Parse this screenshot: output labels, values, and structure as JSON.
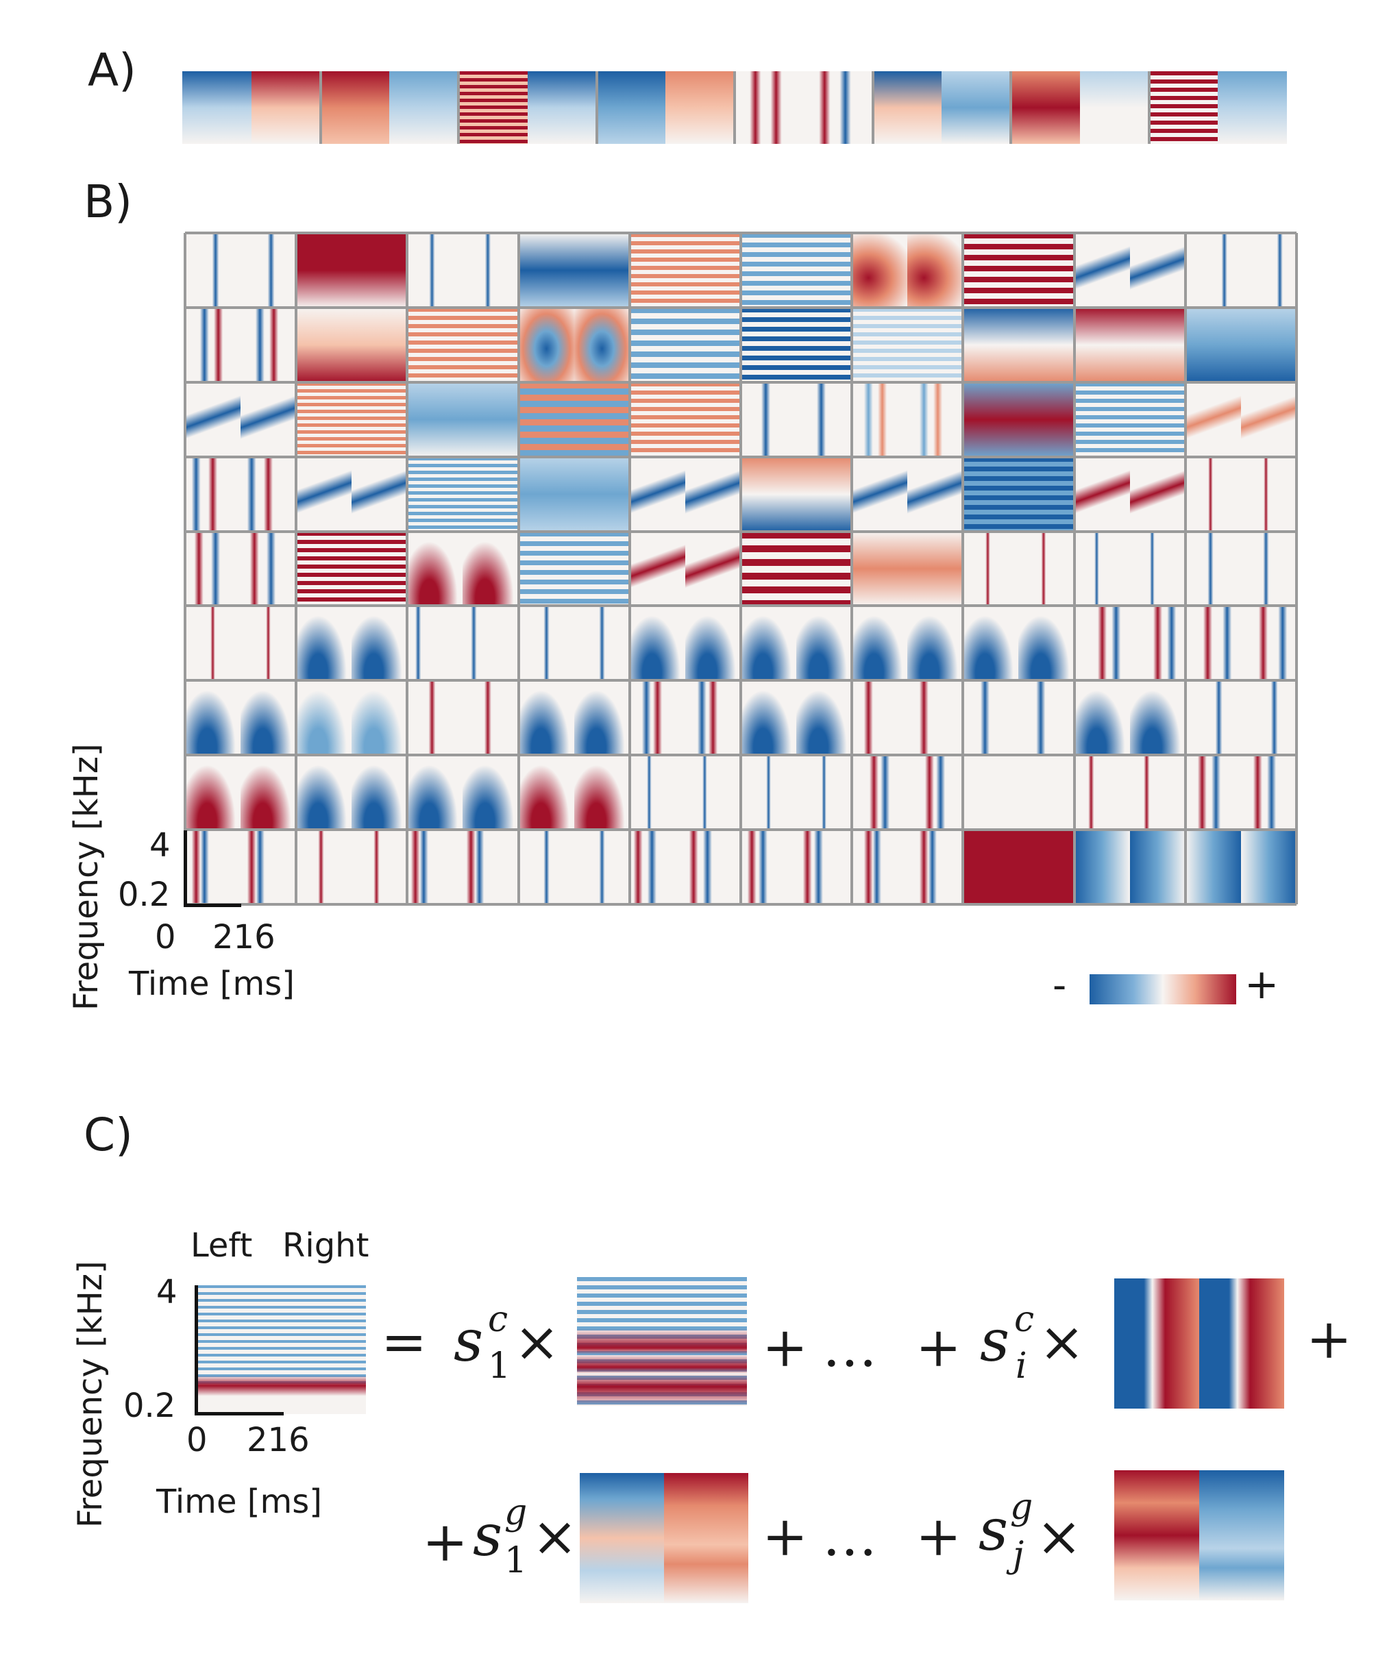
{
  "figure": {
    "panels": [
      {
        "label": "A)"
      },
      {
        "label": "B)"
      },
      {
        "label": "C)"
      }
    ]
  },
  "panel_b": {
    "rows": 9,
    "cols": 10,
    "y_axis_label": "Frequency [kHz]",
    "x_axis_label": "Time [ms]",
    "y_ticks": [
      "4",
      "0.2"
    ],
    "x_ticks": [
      "0",
      "216"
    ],
    "colorbar": {
      "minus": "-",
      "plus": "+",
      "colors": [
        "#1d5fa3",
        "#f7f4f2",
        "#a2122a"
      ]
    }
  },
  "panel_c": {
    "column_labels": [
      "Left",
      "Right"
    ],
    "y_axis_label": "Frequency [kHz]",
    "x_axis_label": "Time [ms]",
    "y_ticks": [
      "4",
      "0.2"
    ],
    "x_ticks": [
      "0",
      "216"
    ],
    "equation": {
      "equals": "=",
      "times": "×",
      "plus": "+",
      "ellipsis": "…",
      "s": "s",
      "sup_c": "c",
      "sup_g": "g",
      "sub_1": "1",
      "sub_i": "i",
      "sub_j": "j"
    }
  }
}
